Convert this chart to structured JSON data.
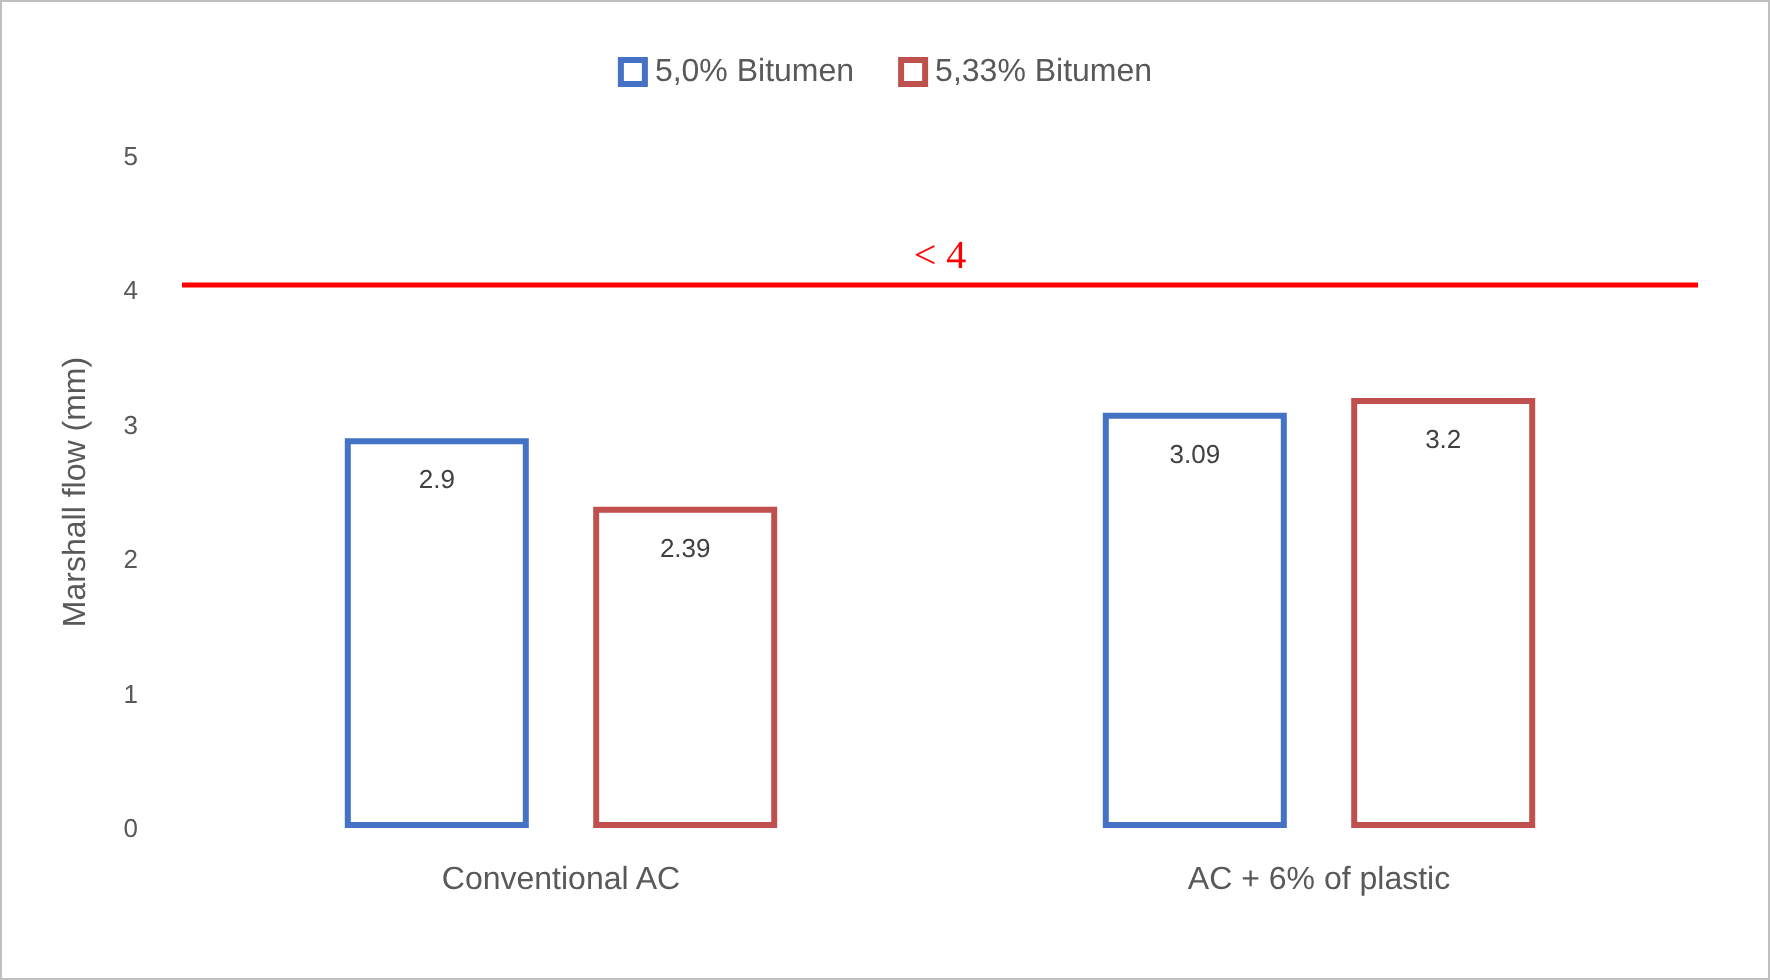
{
  "chart_data": {
    "type": "bar",
    "categories": [
      "Conventional AC",
      "AC + 6% of plastic"
    ],
    "series": [
      {
        "name": "5,0% Bitumen",
        "color": "#4472c4",
        "values": [
          2.9,
          3.09
        ]
      },
      {
        "name": "5,33% Bitumen",
        "color": "#c0504d",
        "values": [
          2.39,
          3.2
        ]
      }
    ],
    "ylabel": "Marshall flow (mm)",
    "ylim": [
      0,
      5
    ],
    "yticks": [
      0,
      1,
      2,
      3,
      4,
      5
    ],
    "ref_lines": [
      {
        "axis": "y",
        "value": 4.05,
        "label": "< 4",
        "color": "#ff0000"
      }
    ],
    "data_labels": true,
    "grid": false,
    "legend": "top"
  }
}
